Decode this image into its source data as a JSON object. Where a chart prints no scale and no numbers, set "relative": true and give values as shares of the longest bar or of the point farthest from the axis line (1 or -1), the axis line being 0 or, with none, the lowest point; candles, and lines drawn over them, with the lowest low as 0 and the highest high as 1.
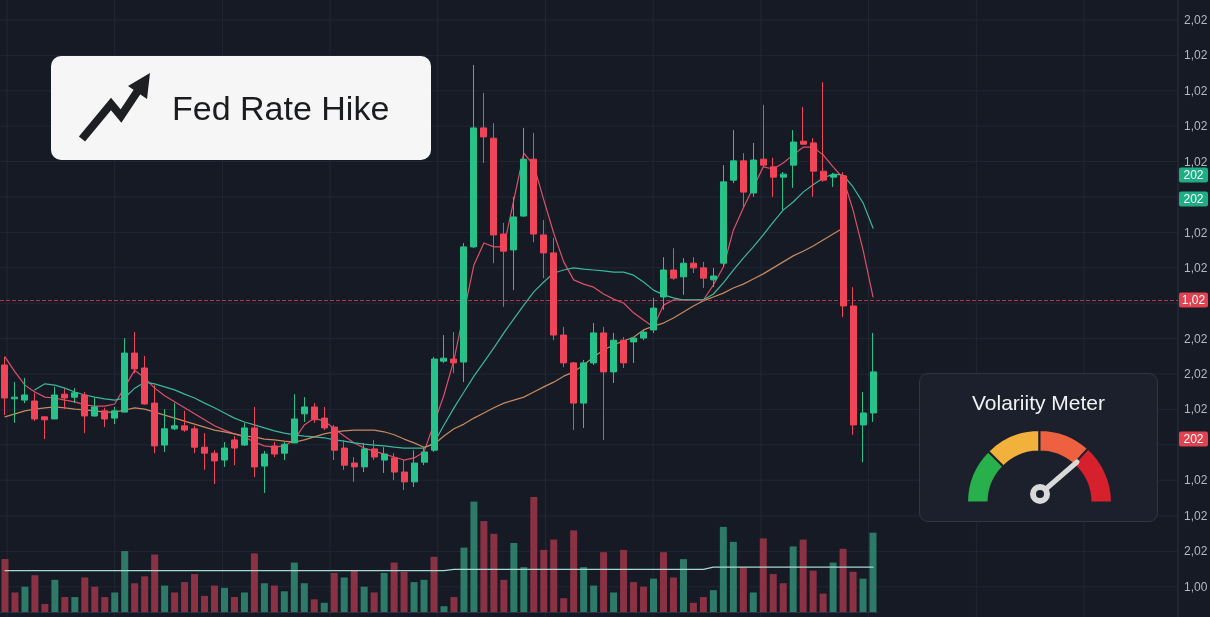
{
  "chart_data": [
    {
      "type": "candlestick",
      "relative": true,
      "categories": [
        null,
        null,
        null,
        null,
        null,
        null,
        null,
        null,
        null,
        null,
        null,
        null,
        null,
        null,
        null,
        null,
        null,
        null,
        null,
        null,
        null,
        null,
        null,
        null,
        null,
        null,
        null,
        null,
        null,
        null,
        null,
        null,
        null,
        null,
        null,
        null,
        null,
        null,
        null,
        null,
        null,
        null,
        null,
        null,
        null,
        null,
        null,
        null,
        null,
        null,
        null,
        null,
        null,
        null,
        null,
        null,
        null,
        null,
        null,
        null,
        null,
        null,
        null,
        null,
        null,
        null,
        null,
        null,
        null,
        null,
        null,
        null,
        null,
        null,
        null,
        null,
        null,
        null,
        null,
        null,
        null,
        null,
        null,
        null,
        null,
        null,
        null,
        null
      ],
      "grid": true,
      "tick_labels": false,
      "marker": "none",
      "ref_lines": [
        {
          "axis": "y",
          "value": 0.451,
          "color": "#e0434f",
          "line_style": "dashed"
        }
      ],
      "annotations": [
        "Fed Rate Hike",
        "2,02",
        "1,02",
        "1,02",
        "1,02",
        "1,02",
        "202",
        "202",
        "1,02",
        "1,02",
        "1,02",
        "2,02",
        "2,02",
        "1,02",
        "202",
        "1,02"
      ],
      "series": [
        {
          "type": "candlestick",
          "ohlc": [
            [
              0.299,
              0.318,
              0.182,
              0.222
            ],
            [
              0.22,
              0.259,
              0.164,
              0.224
            ],
            [
              0.217,
              0.269,
              0.21,
              0.229
            ],
            [
              0.215,
              0.234,
              0.168,
              0.173
            ],
            [
              0.178,
              0.18,
              0.126,
              0.171
            ],
            [
              0.173,
              0.248,
              0.173,
              0.229
            ],
            [
              0.231,
              0.243,
              0.196,
              0.222
            ],
            [
              0.224,
              0.245,
              0.21,
              0.234
            ],
            [
              0.229,
              0.236,
              0.14,
              0.18
            ],
            [
              0.18,
              0.222,
              0.178,
              0.201
            ],
            [
              0.192,
              0.199,
              0.154,
              0.173
            ],
            [
              0.175,
              0.201,
              0.161,
              0.192
            ],
            [
              0.189,
              0.362,
              0.189,
              0.327
            ],
            [
              0.327,
              0.376,
              0.28,
              0.29
            ],
            [
              0.292,
              0.32,
              0.206,
              0.208
            ],
            [
              0.21,
              0.252,
              0.093,
              0.11
            ],
            [
              0.112,
              0.196,
              0.096,
              0.15
            ],
            [
              0.15,
              0.21,
              0.147,
              0.157
            ],
            [
              0.157,
              0.192,
              0.143,
              0.147
            ],
            [
              0.15,
              0.157,
              0.093,
              0.107
            ],
            [
              0.107,
              0.14,
              0.054,
              0.093
            ],
            [
              0.093,
              0.1,
              0.021,
              0.075
            ],
            [
              0.077,
              0.119,
              0.061,
              0.105
            ],
            [
              0.124,
              0.133,
              0.065,
              0.105
            ],
            [
              0.112,
              0.164,
              0.11,
              0.152
            ],
            [
              0.152,
              0.201,
              0.037,
              0.061
            ],
            [
              0.063,
              0.098,
              0,
              0.091
            ],
            [
              0.11,
              0.119,
              0.084,
              0.091
            ],
            [
              0.093,
              0.119,
              0.077,
              0.114
            ],
            [
              0.117,
              0.231,
              0.117,
              0.173
            ],
            [
              0.185,
              0.224,
              0.166,
              0.201
            ],
            [
              0.201,
              0.21,
              0.164,
              0.171
            ],
            [
              0.175,
              0.201,
              0.147,
              0.152
            ],
            [
              0.154,
              0.159,
              0.077,
              0.1
            ],
            [
              0.105,
              0.124,
              0.054,
              0.065
            ],
            [
              0.07,
              0.084,
              0.026,
              0.061
            ],
            [
              0.061,
              0.117,
              0.049,
              0.103
            ],
            [
              0.103,
              0.124,
              0.077,
              0.084
            ],
            [
              0.077,
              0.107,
              0.047,
              0.091
            ],
            [
              0.082,
              0.093,
              0.03,
              0.049
            ],
            [
              0.049,
              0.077,
              0.007,
              0.026
            ],
            [
              0.026,
              0.1,
              0.014,
              0.07
            ],
            [
              0.072,
              0.107,
              0.065,
              0.096
            ],
            [
              0.1,
              0.318,
              0.096,
              0.313
            ],
            [
              0.308,
              0.369,
              0.304,
              0.315
            ],
            [
              0.313,
              0.376,
              0.28,
              0.304
            ],
            [
              0.306,
              0.584,
              0.259,
              0.575
            ],
            [
              0.575,
              1,
              0.572,
              0.853
            ],
            [
              0.853,
              0.935,
              0.771,
              0.832
            ],
            [
              0.829,
              0.864,
              0.537,
              0.603
            ],
            [
              0.605,
              0.631,
              0.435,
              0.565
            ],
            [
              0.568,
              0.692,
              0.474,
              0.645
            ],
            [
              0.647,
              0.853,
              0.645,
              0.78
            ],
            [
              0.78,
              0.841,
              0.586,
              0.605
            ],
            [
              0.603,
              0.638,
              0.502,
              0.561
            ],
            [
              0.561,
              0.596,
              0.357,
              0.369
            ],
            [
              0.369,
              0.388,
              0.294,
              0.304
            ],
            [
              0.304,
              0.306,
              0.147,
              0.21
            ],
            [
              0.21,
              0.311,
              0.152,
              0.304
            ],
            [
              0.304,
              0.397,
              0.299,
              0.374
            ],
            [
              0.374,
              0.388,
              0.124,
              0.283
            ],
            [
              0.283,
              0.374,
              0.257,
              0.357
            ],
            [
              0.357,
              0.364,
              0.292,
              0.304
            ],
            [
              0.353,
              0.364,
              0.304,
              0.362
            ],
            [
              0.362,
              0.381,
              0.357,
              0.376
            ],
            [
              0.381,
              0.456,
              0.374,
              0.432
            ],
            [
              0.458,
              0.551,
              0.428,
              0.521
            ],
            [
              0.521,
              0.572,
              0.498,
              0.502
            ],
            [
              0.505,
              0.549,
              0.463,
              0.537
            ],
            [
              0.537,
              0.551,
              0.514,
              0.526
            ],
            [
              0.526,
              0.54,
              0.479,
              0.502
            ],
            [
              0.498,
              0.526,
              0.481,
              0.507
            ],
            [
              0.537,
              0.766,
              0.528,
              0.727
            ],
            [
              0.731,
              0.848,
              0.724,
              0.776
            ],
            [
              0.776,
              0.794,
              0.668,
              0.703
            ],
            [
              0.701,
              0.818,
              0.692,
              0.778
            ],
            [
              0.78,
              0.907,
              0.762,
              0.766
            ],
            [
              0.762,
              0.783,
              0.692,
              0.738
            ],
            [
              0.738,
              0.75,
              0.661,
              0.745
            ],
            [
              0.766,
              0.848,
              0.713,
              0.82
            ],
            [
              0.822,
              0.902,
              0.813,
              0.815
            ],
            [
              0.818,
              0.829,
              0.692,
              0.752
            ],
            [
              0.752,
              0.96,
              0.727,
              0.731
            ],
            [
              0.738,
              0.748,
              0.715,
              0.743
            ],
            [
              0.741,
              0.75,
              0.411,
              0.437
            ],
            [
              0.437,
              0.481,
              0.136,
              0.159
            ],
            [
              0.159,
              0.236,
              0.072,
              0.187
            ],
            [
              0.187,
              0.374,
              0.166,
              0.283
            ]
          ],
          "colors": [
            "#f04458",
            "#26c28a",
            "#26c28a",
            "#f04458",
            "#f04458",
            "#26c28a",
            "#f04458",
            "#26c28a",
            "#f04458",
            "#26c28a",
            "#f04458",
            "#26c28a",
            "#26c28a",
            "#f04458",
            "#f04458",
            "#f04458",
            "#26c28a",
            "#26c28a",
            "#f04458",
            "#f04458",
            "#f04458",
            "#f04458",
            "#26c28a",
            "#f04458",
            "#26c28a",
            "#f04458",
            "#26c28a",
            "#f04458",
            "#26c28a",
            "#26c28a",
            "#26c28a",
            "#f04458",
            "#f04458",
            "#f04458",
            "#f04458",
            "#f04458",
            "#26c28a",
            "#f04458",
            "#26c28a",
            "#f04458",
            "#f04458",
            "#26c28a",
            "#26c28a",
            "#26c28a",
            "#26c28a",
            "#f04458",
            "#26c28a",
            "#26c28a",
            "#f04458",
            "#f04458",
            "#f04458",
            "#26c28a",
            "#26c28a",
            "#f04458",
            "#f04458",
            "#f04458",
            "#f04458",
            "#f04458",
            "#26c28a",
            "#26c28a",
            "#f04458",
            "#26c28a",
            "#f04458",
            "#26c28a",
            "#26c28a",
            "#26c28a",
            "#26c28a",
            "#f04458",
            "#26c28a",
            "#f04458",
            "#f04458",
            "#26c28a",
            "#26c28a",
            "#26c28a",
            "#f04458",
            "#26c28a",
            "#f04458",
            "#f04458",
            "#26c28a",
            "#26c28a",
            "#f04458",
            "#f04458",
            "#f04458",
            "#26c28a",
            "#f04458",
            "#f04458",
            "#26c28a",
            "#26c28a"
          ]
        },
        {
          "type": "line",
          "color": "#dd5068",
          "values": [
            0.318,
            0.283,
            0.252,
            0.236,
            0.224,
            0.222,
            0.217,
            0.213,
            0.206,
            0.203,
            0.203,
            0.208,
            null,
            0.287,
            0.269,
            0.245,
            0.227,
            0.213,
            0.199,
            0.185,
            0.171,
            0.157,
            0.147,
            0.138,
            0.131,
            0.119,
            0.11,
            0.107,
            0.11,
            0.124,
            0.159,
            0.175,
            0.168,
            0.15,
            0.133,
            0.117,
            0.105,
            0.098,
            0.091,
            0.084,
            0.077,
            0.082,
            0.096,
            null,
            0.229,
            0.311,
            null,
            0.533,
            0.584,
            0.575,
            0.575,
            0.685,
            0.794,
            0.766,
            0.685,
            0.607,
            0.54,
            0.498,
            0.488,
            0.481,
            0.465,
            0.453,
            0.444,
            0.421,
            0.404,
            0.388,
            0.439,
            0.451,
            0.451,
            0.451,
            0.451,
            0.486,
            0.528,
            0.614,
            0.666,
            null,
            0.762,
            0.757,
            0.771,
            0.79,
            0.808,
            0.808,
            0.79,
            0.762,
            0.736,
            0.661,
            0.568,
            0.458
          ]
        },
        {
          "type": "line",
          "color": "#3bb79d",
          "values": [
            null,
            null,
            null,
            0.241,
            0.255,
            0.252,
            0.245,
            0.236,
            0.229,
            0.224,
            0.22,
            0.217,
            0.222,
            0.245,
            0.259,
            0.255,
            0.248,
            0.241,
            0.231,
            0.222,
            0.21,
            0.199,
            0.187,
            0.175,
            0.166,
            0.159,
            0.152,
            0.145,
            0.14,
            0.136,
            0.133,
            0.131,
            0.129,
            0.124,
            0.121,
            0.117,
            0.114,
            0.112,
            0.11,
            0.107,
            0.105,
            0.105,
            0.105,
            0.117,
            0.159,
            0.199,
            0.236,
            0.273,
            0.306,
            0.339,
            0.374,
            0.407,
            0.439,
            0.47,
            0.493,
            0.514,
            0.521,
            0.526,
            0.523,
            0.521,
            0.519,
            0.516,
            0.516,
            0.509,
            0.493,
            0.474,
            0.463,
            0.456,
            0.451,
            0.451,
            0.451,
            0.465,
            0.491,
            0.521,
            0.549,
            0.575,
            0.603,
            0.633,
            0.661,
            0.68,
            0.703,
            0.72,
            0.736,
            0.745,
            0.743,
            0.715,
            0.678,
            0.619
          ]
        },
        {
          "type": "line",
          "color": "#c8895f",
          "values": [
            0.178,
            0.185,
            0.192,
            0.196,
            0.199,
            0.201,
            0.199,
            0.196,
            0.194,
            0.192,
            0.189,
            0.189,
            0.194,
            0.199,
            0.196,
            0.189,
            0.182,
            0.175,
            0.168,
            0.161,
            0.154,
            0.147,
            0.143,
            0.138,
            0.133,
            0.131,
            0.126,
            0.124,
            0.121,
            0.119,
            0.124,
            0.131,
            0.138,
            0.143,
            0.145,
            0.147,
            0.147,
            0.147,
            0.143,
            0.136,
            0.126,
            0.117,
            0.107,
            0.114,
            0.133,
            0.15,
            0.161,
            0.175,
            0.187,
            0.199,
            0.21,
            0.217,
            0.224,
            0.236,
            0.248,
            0.259,
            0.273,
            0.283,
            0.299,
            0.318,
            0.334,
            0.346,
            0.355,
            0.364,
            0.381,
            0.39,
            0.397,
            0.409,
            0.423,
            0.437,
            0.449,
            0.458,
            0.467,
            0.479,
            0.488,
            0.5,
            0.512,
            0.526,
            0.54,
            0.554,
            0.565,
            0.577,
            0.591,
            0.605,
            0.619,
            null,
            null,
            null
          ]
        }
      ]
    },
    {
      "type": "bar",
      "relative": true,
      "tick_labels": false,
      "marker": "none",
      "grid": true,
      "annotations": [
        "1,02",
        "2,02",
        "1,00"
      ],
      "categories": [
        null,
        null,
        null,
        null,
        null,
        null,
        null,
        null,
        null,
        null,
        null,
        null,
        null,
        null,
        null,
        null,
        null,
        null,
        null,
        null,
        null,
        null,
        null,
        null,
        null,
        null,
        null,
        null,
        null,
        null,
        null,
        null,
        null,
        null,
        null,
        null,
        null,
        null,
        null,
        null,
        null,
        null,
        null,
        null,
        null,
        null,
        null,
        null,
        null,
        null,
        null,
        null,
        null,
        null,
        null,
        null,
        null,
        null,
        null,
        null,
        null,
        null,
        null,
        null,
        null,
        null,
        null,
        null,
        null,
        null,
        null,
        null,
        null,
        null,
        null,
        null,
        null,
        null,
        null,
        null,
        null,
        null,
        null,
        null,
        null,
        null,
        null,
        null
      ],
      "series": [
        {
          "type": "bar",
          "values": [
            0.46,
            0.17,
            0.22,
            0.32,
            0.07,
            0.28,
            0.13,
            0.13,
            0.3,
            0.22,
            0.13,
            0.17,
            0.53,
            0.25,
            0.31,
            0.5,
            0.23,
            0.17,
            0.26,
            0.33,
            0.14,
            0.23,
            0.21,
            0.13,
            0.17,
            0.51,
            0.25,
            0.23,
            0.18,
            0.43,
            0.25,
            0.11,
            0.08,
            0.34,
            0.3,
            0.36,
            0.22,
            0.17,
            0.34,
            0.43,
            0.35,
            0.26,
            0.28,
            0.48,
            0.05,
            0.13,
            0.56,
            0.96,
            0.79,
            0.68,
            0.28,
            0.6,
            0.39,
            1,
            0.54,
            0.63,
            0.12,
            0.71,
            0.39,
            0.23,
            0.52,
            0.17,
            0.54,
            0.26,
            0.22,
            0.29,
            0.52,
            0.3,
            0.46,
            0.08,
            0.13,
            0.19,
            0.74,
            0.61,
            0.39,
            0.17,
            0.64,
            0.33,
            0.25,
            0.57,
            0.63,
            0.36,
            0.16,
            0.43,
            0.55,
            0.35,
            0.29,
            0.69
          ],
          "colors": [
            "#8a3244",
            "#8a3244",
            "#2e7a68",
            "#8a3244",
            "#8a3244",
            "#2e7a68",
            "#8a3244",
            "#2e7a68",
            "#8a3244",
            "#8a3244",
            "#8a3244",
            "#2e7a68",
            "#2e7a68",
            "#8a3244",
            "#8a3244",
            "#8a3244",
            "#2e7a68",
            "#8a3244",
            "#8a3244",
            "#8a3244",
            "#8a3244",
            "#8a3244",
            "#2e7a68",
            "#8a3244",
            "#2e7a68",
            "#8a3244",
            "#2e7a68",
            "#8a3244",
            "#2e7a68",
            "#2e7a68",
            "#2e7a68",
            "#8a3244",
            "#2e7a68",
            "#8a3244",
            "#2e7a68",
            "#8a3244",
            "#2e7a68",
            "#8a3244",
            "#2e7a68",
            "#8a3244",
            "#8a3244",
            "#2e7a68",
            "#2e7a68",
            "#8a3244",
            "#2e7a68",
            "#8a3244",
            "#2e7a68",
            "#2e7a68",
            "#8a3244",
            "#8a3244",
            "#8a3244",
            "#2e7a68",
            "#2e7a68",
            "#8a3244",
            "#8a3244",
            "#8a3244",
            "#8a3244",
            "#8a3244",
            "#2e7a68",
            "#2e7a68",
            "#8a3244",
            "#2e7a68",
            "#8a3244",
            "#8a3244",
            "#8a3244",
            "#2e7a68",
            "#8a3244",
            "#8a3244",
            "#2e7a68",
            "#8a3244",
            "#8a3244",
            "#2e7a68",
            "#2e7a68",
            "#2e7a68",
            "#8a3244",
            "#2e7a68",
            "#8a3244",
            "#8a3244",
            "#8a3244",
            "#2e7a68",
            "#8a3244",
            "#8a3244",
            "#8a3244",
            "#2e7a68",
            "#8a3244",
            "#8a3244",
            "#2e7a68",
            "#2e7a68"
          ]
        },
        {
          "type": "line",
          "color": "#a6d8cf",
          "values": [
            0.36,
            0.36,
            0.36,
            0.36,
            0.36,
            0.36,
            0.36,
            0.36,
            0.36,
            0.36,
            0.36,
            0.36,
            0.36,
            0.36,
            0.36,
            0.36,
            0.36,
            0.36,
            0.36,
            0.36,
            0.36,
            0.36,
            0.36,
            0.36,
            0.36,
            0.36,
            0.36,
            0.36,
            0.36,
            0.36,
            0.36,
            0.36,
            0.36,
            0.36,
            0.36,
            0.36,
            0.36,
            0.36,
            0.36,
            0.36,
            0.36,
            0.36,
            0.36,
            0.36,
            0.36,
            0.37,
            0.37,
            0.37,
            0.37,
            0.37,
            0.37,
            0.37,
            0.37,
            0.37,
            0.37,
            0.37,
            0.37,
            0.37,
            0.37,
            0.37,
            0.37,
            0.37,
            0.37,
            0.37,
            0.37,
            0.37,
            0.37,
            0.37,
            0.37,
            0.37,
            0.37,
            0.39,
            0.39,
            0.39,
            0.39,
            0.39,
            0.39,
            0.39,
            0.39,
            0.39,
            0.39,
            0.39,
            0.39,
            0.39,
            0.39,
            0.39,
            0.39,
            0.39
          ]
        }
      ]
    },
    {
      "type": "other",
      "title": "Volariity Meter"
    }
  ]
}
